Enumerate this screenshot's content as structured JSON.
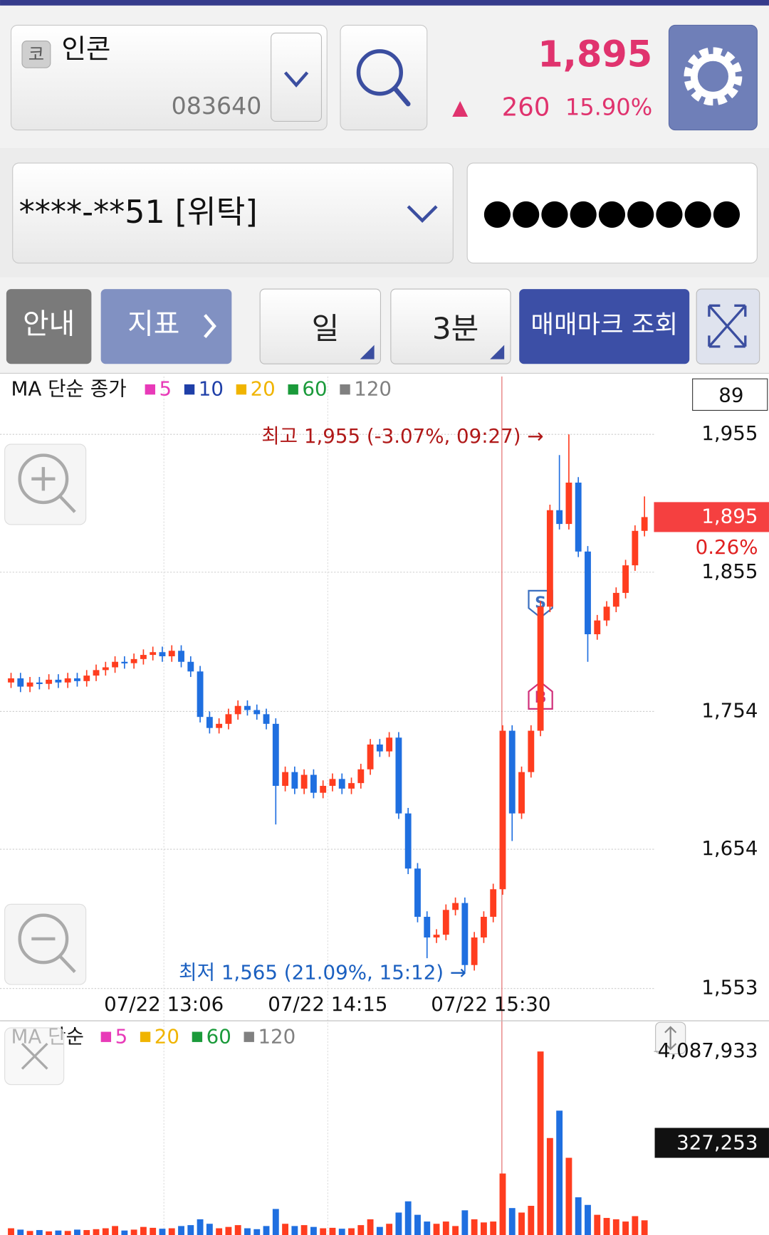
{
  "stock": {
    "market_badge": "코",
    "name": "인콘",
    "code": "083640",
    "price": "1,895",
    "change_arrow": "▲",
    "change": "260",
    "change_rate": "15.90%"
  },
  "account": {
    "number": "****-**51 [위탁]",
    "password": "●●●●●●●●●"
  },
  "toolbar": {
    "info": "안내",
    "indicator": "지표",
    "period": "일",
    "interval": "3분",
    "trade_mark": "매매마크 조회"
  },
  "chart_data": [
    {
      "type": "candlestick",
      "legend_title": "MA 단순 종가",
      "legend": [
        {
          "name": "5",
          "color": "#e83ab8"
        },
        {
          "name": "10",
          "color": "#1f3fa8"
        },
        {
          "name": "20",
          "color": "#f0b400"
        },
        {
          "name": "60",
          "color": "#1a9a3a"
        },
        {
          "name": "120",
          "color": "#808080"
        }
      ],
      "counter": "89",
      "x_labels": [
        "07/22 13:06",
        "07/22 14:15",
        "07/22 15:30"
      ],
      "high_annotation": "최고 1,955 (-3.07%, 09:27) →",
      "low_annotation": "최저 1,565 (21.09%, 15:12) →",
      "trade_marks": [
        "S",
        "B"
      ],
      "current_price": {
        "value": 1895,
        "label": "1,895"
      },
      "current_change": "0.26%",
      "ylim": [
        1553,
        1997
      ],
      "yticks": [
        {
          "value": 1955,
          "label": "1,955"
        },
        {
          "value": 1855,
          "label": "1,855"
        },
        {
          "value": 1754,
          "label": "1,754"
        },
        {
          "value": 1654,
          "label": "1,654"
        },
        {
          "value": 1553,
          "label": "1,553"
        }
      ],
      "up_color": "#ff3d1f",
      "down_color": "#1f6fe0",
      "open": [
        1775,
        1778,
        1772,
        1775,
        1774,
        1777,
        1775,
        1778,
        1776,
        1780,
        1784,
        1786,
        1790,
        1789,
        1792,
        1795,
        1797,
        1794,
        1798,
        1790,
        1783,
        1750,
        1742,
        1745,
        1752,
        1758,
        1755,
        1752,
        1745,
        1700,
        1710,
        1698,
        1708,
        1695,
        1700,
        1705,
        1698,
        1702,
        1712,
        1730,
        1725,
        1735,
        1680,
        1640,
        1605,
        1590,
        1592,
        1610,
        1615,
        1570,
        1590,
        1605,
        1625,
        1740,
        1680,
        1710,
        1740,
        1830,
        1900,
        1890,
        1920,
        1870,
        1810,
        1820,
        1830,
        1840,
        1860,
        1885
      ],
      "high": [
        1782,
        1782,
        1779,
        1779,
        1781,
        1781,
        1782,
        1782,
        1784,
        1788,
        1790,
        1794,
        1794,
        1796,
        1799,
        1801,
        1801,
        1802,
        1802,
        1794,
        1787,
        1754,
        1749,
        1756,
        1762,
        1762,
        1759,
        1756,
        1749,
        1714,
        1714,
        1712,
        1712,
        1704,
        1709,
        1709,
        1706,
        1716,
        1734,
        1734,
        1739,
        1739,
        1684,
        1644,
        1609,
        1596,
        1614,
        1619,
        1619,
        1594,
        1609,
        1629,
        1744,
        1744,
        1714,
        1744,
        1834,
        1904,
        1940,
        1955,
        1924,
        1874,
        1824,
        1834,
        1844,
        1864,
        1889,
        1910
      ],
      "low": [
        1771,
        1768,
        1768,
        1770,
        1770,
        1771,
        1771,
        1772,
        1772,
        1776,
        1780,
        1782,
        1785,
        1785,
        1788,
        1791,
        1790,
        1790,
        1786,
        1779,
        1746,
        1738,
        1738,
        1741,
        1748,
        1751,
        1748,
        1741,
        1672,
        1696,
        1694,
        1694,
        1691,
        1691,
        1696,
        1694,
        1694,
        1698,
        1708,
        1721,
        1721,
        1676,
        1636,
        1601,
        1575,
        1586,
        1588,
        1606,
        1565,
        1566,
        1586,
        1601,
        1621,
        1660,
        1676,
        1706,
        1736,
        1826,
        1886,
        1886,
        1866,
        1790,
        1806,
        1816,
        1826,
        1836,
        1856,
        1881
      ],
      "close": [
        1778,
        1772,
        1775,
        1774,
        1777,
        1775,
        1778,
        1776,
        1780,
        1784,
        1786,
        1790,
        1789,
        1792,
        1795,
        1797,
        1794,
        1798,
        1790,
        1783,
        1750,
        1742,
        1745,
        1752,
        1758,
        1755,
        1752,
        1745,
        1700,
        1710,
        1698,
        1708,
        1695,
        1700,
        1705,
        1698,
        1702,
        1712,
        1730,
        1725,
        1735,
        1680,
        1640,
        1605,
        1590,
        1592,
        1610,
        1615,
        1570,
        1590,
        1605,
        1625,
        1740,
        1680,
        1710,
        1740,
        1830,
        1900,
        1890,
        1920,
        1870,
        1810,
        1820,
        1830,
        1840,
        1860,
        1885,
        1895
      ]
    },
    {
      "type": "bar",
      "legend_title": "MA 단순",
      "legend": [
        {
          "name": "5",
          "color": "#e83ab8"
        },
        {
          "name": "20",
          "color": "#f0b400"
        },
        {
          "name": "60",
          "color": "#1a9a3a"
        },
        {
          "name": "120",
          "color": "#808080"
        }
      ],
      "current_volume": "327,253",
      "ylim": [
        0,
        4087933
      ],
      "yticks": [
        {
          "value": 4087933,
          "label": "4,087,933"
        }
      ],
      "values": [
        150000,
        120000,
        90000,
        110000,
        80000,
        100000,
        90000,
        120000,
        110000,
        130000,
        150000,
        200000,
        100000,
        120000,
        180000,
        160000,
        140000,
        150000,
        200000,
        220000,
        350000,
        250000,
        150000,
        180000,
        220000,
        150000,
        130000,
        200000,
        580000,
        250000,
        200000,
        220000,
        180000,
        150000,
        160000,
        140000,
        150000,
        220000,
        350000,
        180000,
        250000,
        500000,
        750000,
        450000,
        300000,
        250000,
        300000,
        200000,
        550000,
        350000,
        280000,
        300000,
        1370000,
        600000,
        500000,
        650000,
        4087933,
        2160000,
        2770000,
        1720000,
        840000,
        670000,
        450000,
        380000,
        350000,
        300000,
        420000,
        327253
      ]
    }
  ]
}
